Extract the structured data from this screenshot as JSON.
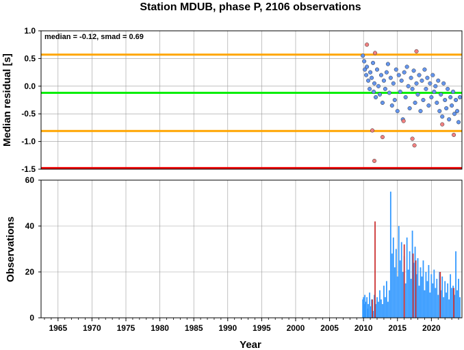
{
  "chart_data": [
    {
      "type": "scatter",
      "title": "Station MDUB, phase P, 2106 observations",
      "ylabel": "Median residual [s]",
      "xlabel": "",
      "xlim": [
        1962.5,
        2024.5
      ],
      "ylim": [
        -1.5,
        1.0
      ],
      "yticks": [
        "1.0",
        "0.5",
        "0.0",
        "-0.5",
        "-1.0",
        "-1.5"
      ],
      "annotation": "median = -0.12, smad = 0.69",
      "grid": true,
      "reference_lines": [
        {
          "value": 0.57,
          "color": "#ffa500"
        },
        {
          "value": -0.12,
          "color": "#00ee00"
        },
        {
          "value": -0.81,
          "color": "#ffa500"
        },
        {
          "value": -1.48,
          "color": "#ee0000"
        }
      ],
      "series": [
        {
          "color": "#6495ed",
          "points": [
            [
              2009.9,
              0.55
            ],
            [
              2010.1,
              0.45
            ],
            [
              2010.2,
              0.3
            ],
            [
              2010.4,
              0.2
            ],
            [
              2010.5,
              0.35
            ],
            [
              2010.7,
              0.1
            ],
            [
              2010.9,
              -0.05
            ],
            [
              2011.0,
              0.25
            ],
            [
              2011.2,
              0.15
            ],
            [
              2011.4,
              0.42
            ],
            [
              2011.5,
              -0.1
            ],
            [
              2011.6,
              0.05
            ],
            [
              2011.8,
              -0.2
            ],
            [
              2012.0,
              0.3
            ],
            [
              2012.2,
              0.0
            ],
            [
              2012.4,
              -0.15
            ],
            [
              2012.6,
              0.2
            ],
            [
              2012.8,
              -0.3
            ],
            [
              2013.0,
              0.1
            ],
            [
              2013.2,
              -0.05
            ],
            [
              2013.4,
              0.25
            ],
            [
              2013.6,
              0.4
            ],
            [
              2013.8,
              -0.12
            ],
            [
              2014.0,
              0.15
            ],
            [
              2014.2,
              -0.35
            ],
            [
              2014.4,
              0.05
            ],
            [
              2014.6,
              -0.25
            ],
            [
              2014.8,
              0.3
            ],
            [
              2015.0,
              -0.45
            ],
            [
              2015.2,
              0.2
            ],
            [
              2015.4,
              -0.1
            ],
            [
              2015.6,
              0.1
            ],
            [
              2015.8,
              -0.6
            ],
            [
              2016.0,
              0.25
            ],
            [
              2016.2,
              -0.2
            ],
            [
              2016.4,
              0.35
            ],
            [
              2016.6,
              0.0
            ],
            [
              2016.8,
              -0.4
            ],
            [
              2017.0,
              0.15
            ],
            [
              2017.2,
              -0.05
            ],
            [
              2017.4,
              0.28
            ],
            [
              2017.6,
              -0.3
            ],
            [
              2017.8,
              0.05
            ],
            [
              2018.0,
              -0.15
            ],
            [
              2018.2,
              0.2
            ],
            [
              2018.4,
              -0.45
            ],
            [
              2018.6,
              0.1
            ],
            [
              2018.8,
              -0.25
            ],
            [
              2019.0,
              0.3
            ],
            [
              2019.2,
              -0.05
            ],
            [
              2019.4,
              0.15
            ],
            [
              2019.6,
              -0.35
            ],
            [
              2019.8,
              0.05
            ],
            [
              2020.0,
              -0.2
            ],
            [
              2020.2,
              0.2
            ],
            [
              2020.4,
              -0.1
            ],
            [
              2020.6,
              0.0
            ],
            [
              2020.8,
              -0.3
            ],
            [
              2021.0,
              0.1
            ],
            [
              2021.2,
              -0.45
            ],
            [
              2021.4,
              -0.15
            ],
            [
              2021.6,
              -0.55
            ],
            [
              2021.8,
              0.05
            ],
            [
              2022.0,
              -0.25
            ],
            [
              2022.2,
              -0.4
            ],
            [
              2022.4,
              -0.05
            ],
            [
              2022.6,
              -0.6
            ],
            [
              2022.8,
              -0.2
            ],
            [
              2023.0,
              -0.35
            ],
            [
              2023.2,
              -0.1
            ],
            [
              2023.4,
              -0.5
            ],
            [
              2023.6,
              -0.25
            ],
            [
              2023.8,
              -0.45
            ],
            [
              2024.0,
              -0.65
            ],
            [
              2024.2,
              -0.2
            ]
          ]
        },
        {
          "color": "#f08080",
          "points": [
            [
              2010.5,
              0.75
            ],
            [
              2011.3,
              -0.8
            ],
            [
              2011.6,
              -1.35
            ],
            [
              2011.7,
              0.6
            ],
            [
              2012.8,
              -0.92
            ],
            [
              2015.9,
              -0.63
            ],
            [
              2017.2,
              -0.95
            ],
            [
              2017.5,
              -1.07
            ],
            [
              2017.8,
              0.63
            ],
            [
              2021.6,
              -0.69
            ],
            [
              2023.3,
              -0.88
            ]
          ]
        }
      ]
    },
    {
      "type": "bar",
      "xlabel": "Year",
      "ylabel": "Observations",
      "xlim": [
        1962.5,
        2024.5
      ],
      "ylim": [
        0,
        60
      ],
      "xticks": [
        "1965",
        "1970",
        "1975",
        "1980",
        "1985",
        "1990",
        "1995",
        "2000",
        "2005",
        "2010",
        "2015",
        "2020"
      ],
      "yticks": [
        "60",
        "40",
        "20",
        "0"
      ],
      "grid": true,
      "series": [
        {
          "color": "#3399ff",
          "x": [
            2009.9,
            2010.0,
            2010.1,
            2010.2,
            2010.3,
            2010.5,
            2010.6,
            2010.7,
            2010.9,
            2011.0,
            2011.2,
            2011.4,
            2011.6,
            2011.8,
            2012.0,
            2012.2,
            2012.4,
            2012.6,
            2012.8,
            2013.0,
            2013.2,
            2013.4,
            2013.6,
            2013.8,
            2014.0,
            2014.2,
            2014.4,
            2014.6,
            2014.8,
            2015.0,
            2015.2,
            2015.4,
            2015.6,
            2015.8,
            2016.0,
            2016.2,
            2016.4,
            2016.6,
            2016.8,
            2017.0,
            2017.2,
            2017.4,
            2017.6,
            2017.8,
            2018.0,
            2018.2,
            2018.4,
            2018.6,
            2018.8,
            2019.0,
            2019.2,
            2019.4,
            2019.6,
            2019.8,
            2020.0,
            2020.2,
            2020.4,
            2020.6,
            2020.8,
            2021.0,
            2021.2,
            2021.4,
            2021.6,
            2021.8,
            2022.0,
            2022.2,
            2022.4,
            2022.6,
            2022.8,
            2023.0,
            2023.2,
            2023.4,
            2023.6,
            2023.8,
            2024.0,
            2024.2
          ],
          "values": [
            8,
            9,
            6,
            10,
            7,
            9,
            4,
            6,
            11,
            5,
            8,
            3,
            10,
            6,
            9,
            7,
            12,
            8,
            6,
            14,
            9,
            16,
            7,
            12,
            55,
            28,
            35,
            22,
            30,
            18,
            40,
            25,
            33,
            20,
            27,
            15,
            35,
            21,
            29,
            17,
            38,
            24,
            31,
            19,
            26,
            14,
            22,
            18,
            25,
            12,
            20,
            16,
            23,
            11,
            19,
            15,
            21,
            13,
            17,
            10,
            20,
            12,
            18,
            9,
            16,
            11,
            15,
            8,
            19,
            13,
            14,
            10,
            29,
            12,
            17,
            9
          ]
        },
        {
          "color": "#cc3333",
          "x": [
            2011.3,
            2011.7,
            2016.0,
            2017.3,
            2017.7,
            2021.3,
            2023.3
          ],
          "values": [
            8,
            42,
            32,
            28,
            25,
            20,
            13
          ]
        }
      ]
    }
  ]
}
